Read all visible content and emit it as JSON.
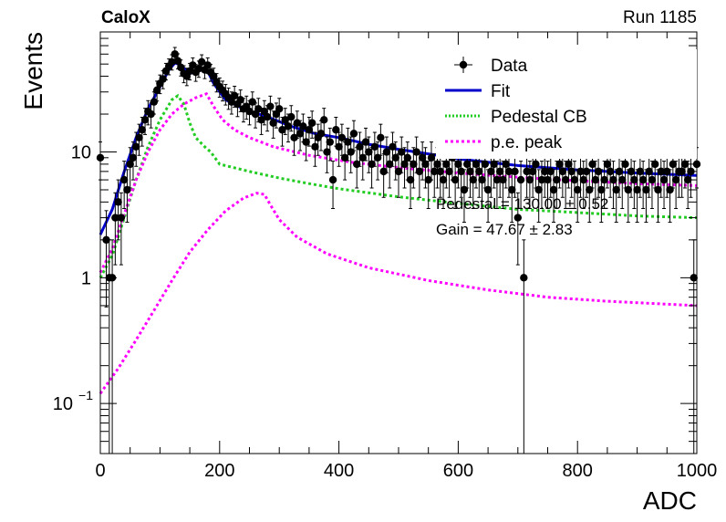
{
  "header": {
    "left_label": "CaloX",
    "right_label": "Run 1185"
  },
  "chart_data": {
    "type": "scatter",
    "xlabel": "ADC",
    "ylabel": "Events",
    "xlim": [
      0,
      1000
    ],
    "ylim": [
      0.04,
      90
    ],
    "yscale": "log",
    "grid": false,
    "legend_position": "top-right",
    "x_ticks": [
      "0",
      "200",
      "400",
      "600",
      "800",
      "1000"
    ],
    "y_ticks": [
      {
        "base": "10",
        "exp": "−1",
        "value": 0.1
      },
      {
        "base": "1",
        "exp": "",
        "value": 1
      },
      {
        "base": "10",
        "exp": "",
        "value": 10
      }
    ],
    "legend": [
      {
        "label": "Data",
        "style": "marker"
      },
      {
        "label": "Fit",
        "style": "line"
      },
      {
        "label": "Pedestal CB",
        "style": "dotted"
      },
      {
        "label": "p.e. peak",
        "style": "dashed"
      }
    ],
    "annotations": [
      "Pedestal = 130.00 ± 0.52",
      "Gain = 47.67 ± 2.83"
    ],
    "colors": {
      "data": "#000000",
      "fit": "#0000cc",
      "pedestal": "#22cc22",
      "pe": "#ff00ff"
    },
    "series": [
      {
        "name": "Data",
        "points": [
          [
            0,
            9
          ],
          [
            10,
            2
          ],
          [
            15,
            1
          ],
          [
            20,
            1
          ],
          [
            25,
            3
          ],
          [
            30,
            4
          ],
          [
            35,
            3
          ],
          [
            40,
            6
          ],
          [
            45,
            5
          ],
          [
            50,
            8
          ],
          [
            55,
            9
          ],
          [
            60,
            11
          ],
          [
            65,
            13
          ],
          [
            70,
            15
          ],
          [
            75,
            18
          ],
          [
            80,
            21
          ],
          [
            85,
            20
          ],
          [
            90,
            25
          ],
          [
            95,
            31
          ],
          [
            100,
            35
          ],
          [
            105,
            38
          ],
          [
            110,
            44
          ],
          [
            115,
            48
          ],
          [
            120,
            52
          ],
          [
            125,
            60
          ],
          [
            130,
            53
          ],
          [
            135,
            47
          ],
          [
            140,
            42
          ],
          [
            145,
            40
          ],
          [
            150,
            44
          ],
          [
            155,
            49
          ],
          [
            160,
            43
          ],
          [
            165,
            46
          ],
          [
            170,
            52
          ],
          [
            175,
            45
          ],
          [
            180,
            49
          ],
          [
            185,
            43
          ],
          [
            190,
            40
          ],
          [
            195,
            36
          ],
          [
            200,
            33
          ],
          [
            205,
            31
          ],
          [
            210,
            29
          ],
          [
            215,
            27
          ],
          [
            220,
            25
          ],
          [
            225,
            28
          ],
          [
            230,
            24
          ],
          [
            235,
            26
          ],
          [
            240,
            22
          ],
          [
            245,
            23
          ],
          [
            250,
            21
          ],
          [
            255,
            25
          ],
          [
            260,
            20
          ],
          [
            265,
            22
          ],
          [
            270,
            18
          ],
          [
            275,
            21
          ],
          [
            280,
            19
          ],
          [
            285,
            23
          ],
          [
            290,
            17
          ],
          [
            295,
            20
          ],
          [
            300,
            22
          ],
          [
            305,
            15
          ],
          [
            310,
            18
          ],
          [
            315,
            16
          ],
          [
            320,
            19
          ],
          [
            325,
            13
          ],
          [
            330,
            17
          ],
          [
            335,
            14
          ],
          [
            340,
            16
          ],
          [
            345,
            12
          ],
          [
            350,
            15
          ],
          [
            355,
            17
          ],
          [
            360,
            11
          ],
          [
            365,
            13
          ],
          [
            370,
            14
          ],
          [
            375,
            18
          ],
          [
            380,
            10
          ],
          [
            385,
            12
          ],
          [
            390,
            6
          ],
          [
            395,
            15
          ],
          [
            400,
            11
          ],
          [
            405,
            13
          ],
          [
            410,
            9
          ],
          [
            415,
            12
          ],
          [
            420,
            10
          ],
          [
            425,
            14
          ],
          [
            430,
            8
          ],
          [
            435,
            11
          ],
          [
            440,
            9
          ],
          [
            445,
            12
          ],
          [
            450,
            10
          ],
          [
            455,
            8
          ],
          [
            460,
            11
          ],
          [
            465,
            9
          ],
          [
            470,
            13
          ],
          [
            475,
            7
          ],
          [
            480,
            10
          ],
          [
            485,
            8
          ],
          [
            490,
            11
          ],
          [
            495,
            9
          ],
          [
            500,
            7
          ],
          [
            505,
            10
          ],
          [
            510,
            8
          ],
          [
            515,
            9
          ],
          [
            520,
            6
          ],
          [
            525,
            8
          ],
          [
            530,
            10
          ],
          [
            535,
            7
          ],
          [
            540,
            9
          ],
          [
            545,
            8
          ],
          [
            550,
            6
          ],
          [
            555,
            9
          ],
          [
            560,
            7
          ],
          [
            565,
            8
          ],
          [
            570,
            7
          ],
          [
            575,
            6
          ],
          [
            580,
            8
          ],
          [
            585,
            7
          ],
          [
            590,
            9
          ],
          [
            595,
            6
          ],
          [
            600,
            8
          ],
          [
            605,
            7
          ],
          [
            610,
            5
          ],
          [
            615,
            8
          ],
          [
            620,
            7
          ],
          [
            625,
            6
          ],
          [
            630,
            8
          ],
          [
            635,
            7
          ],
          [
            640,
            6
          ],
          [
            645,
            8
          ],
          [
            650,
            5
          ],
          [
            655,
            7
          ],
          [
            660,
            8
          ],
          [
            665,
            6
          ],
          [
            670,
            7
          ],
          [
            675,
            6
          ],
          [
            680,
            8
          ],
          [
            685,
            7
          ],
          [
            690,
            5
          ],
          [
            695,
            7
          ],
          [
            700,
            3
          ],
          [
            705,
            6
          ],
          [
            710,
            1
          ],
          [
            715,
            7
          ],
          [
            720,
            6
          ],
          [
            725,
            7
          ],
          [
            730,
            8
          ],
          [
            735,
            5
          ],
          [
            740,
            6
          ],
          [
            745,
            7
          ],
          [
            750,
            6
          ],
          [
            755,
            7
          ],
          [
            760,
            5
          ],
          [
            765,
            6
          ],
          [
            770,
            8
          ],
          [
            775,
            7
          ],
          [
            780,
            6
          ],
          [
            785,
            8
          ],
          [
            790,
            7
          ],
          [
            795,
            6
          ],
          [
            800,
            5
          ],
          [
            805,
            7
          ],
          [
            810,
            6
          ],
          [
            815,
            7
          ],
          [
            820,
            5
          ],
          [
            825,
            8
          ],
          [
            830,
            6
          ],
          [
            835,
            7
          ],
          [
            840,
            5
          ],
          [
            845,
            6
          ],
          [
            850,
            8
          ],
          [
            855,
            7
          ],
          [
            860,
            6
          ],
          [
            865,
            5
          ],
          [
            870,
            7
          ],
          [
            875,
            6
          ],
          [
            880,
            8
          ],
          [
            885,
            5
          ],
          [
            890,
            7
          ],
          [
            895,
            6
          ],
          [
            900,
            5
          ],
          [
            905,
            7
          ],
          [
            910,
            6
          ],
          [
            915,
            5
          ],
          [
            920,
            7
          ],
          [
            925,
            6
          ],
          [
            930,
            8
          ],
          [
            935,
            5
          ],
          [
            940,
            7
          ],
          [
            945,
            6
          ],
          [
            950,
            7
          ],
          [
            955,
            5
          ],
          [
            960,
            8
          ],
          [
            965,
            6
          ],
          [
            970,
            7
          ],
          [
            975,
            7
          ],
          [
            980,
            8
          ],
          [
            985,
            6
          ],
          [
            990,
            7
          ],
          [
            995,
            1
          ],
          [
            1000,
            8
          ]
        ]
      },
      {
        "name": "Fit",
        "points": [
          [
            0,
            2.2
          ],
          [
            20,
            3.5
          ],
          [
            40,
            7
          ],
          [
            60,
            13
          ],
          [
            80,
            22
          ],
          [
            100,
            33
          ],
          [
            115,
            45
          ],
          [
            125,
            51
          ],
          [
            135,
            49
          ],
          [
            150,
            42
          ],
          [
            165,
            44
          ],
          [
            178,
            46
          ],
          [
            190,
            35
          ],
          [
            210,
            26
          ],
          [
            240,
            22
          ],
          [
            280,
            19
          ],
          [
            320,
            16
          ],
          [
            360,
            14
          ],
          [
            400,
            13
          ],
          [
            450,
            11.5
          ],
          [
            500,
            10.5
          ],
          [
            560,
            9.5
          ],
          [
            600,
            8.8
          ],
          [
            700,
            7.8
          ],
          [
            800,
            7.2
          ],
          [
            900,
            6.8
          ],
          [
            1000,
            6.5
          ]
        ]
      },
      {
        "name": "Pedestal CB",
        "points": [
          [
            0,
            1.0
          ],
          [
            20,
            1.5
          ],
          [
            40,
            3
          ],
          [
            60,
            6
          ],
          [
            80,
            11
          ],
          [
            100,
            18
          ],
          [
            120,
            26
          ],
          [
            130,
            28
          ],
          [
            140,
            24
          ],
          [
            150,
            17
          ],
          [
            160,
            13
          ],
          [
            175,
            11
          ],
          [
            185,
            10
          ],
          [
            200,
            8
          ],
          [
            250,
            7
          ],
          [
            300,
            6.2
          ],
          [
            350,
            5.6
          ],
          [
            400,
            5.1
          ],
          [
            500,
            4.4
          ],
          [
            600,
            3.9
          ],
          [
            700,
            3.5
          ],
          [
            800,
            3.3
          ],
          [
            900,
            3.1
          ],
          [
            1000,
            3.0
          ]
        ]
      },
      {
        "name": "p.e. peak",
        "points": [
          [
            0,
            0.12
          ],
          [
            30,
            0.19
          ],
          [
            60,
            0.32
          ],
          [
            90,
            0.55
          ],
          [
            120,
            0.95
          ],
          [
            150,
            1.6
          ],
          [
            180,
            2.4
          ],
          [
            210,
            3.4
          ],
          [
            240,
            4.3
          ],
          [
            262,
            4.7
          ],
          [
            275,
            4.6
          ],
          [
            285,
            3.8
          ],
          [
            300,
            2.9
          ],
          [
            330,
            2.1
          ],
          [
            380,
            1.55
          ],
          [
            450,
            1.2
          ],
          [
            550,
            0.95
          ],
          [
            650,
            0.8
          ],
          [
            750,
            0.7
          ],
          [
            850,
            0.65
          ],
          [
            1000,
            0.6
          ]
        ]
      },
      {
        "name": "p.e. peak",
        "points": [
          [
            0,
            1.1
          ],
          [
            20,
            1.7
          ],
          [
            40,
            3.2
          ],
          [
            60,
            6
          ],
          [
            80,
            10
          ],
          [
            100,
            15
          ],
          [
            120,
            20
          ],
          [
            140,
            24
          ],
          [
            160,
            27
          ],
          [
            178,
            29
          ],
          [
            190,
            23
          ],
          [
            205,
            18
          ],
          [
            225,
            15
          ],
          [
            250,
            13
          ],
          [
            290,
            11
          ],
          [
            350,
            9.4
          ],
          [
            420,
            8.3
          ],
          [
            500,
            7.5
          ],
          [
            600,
            6.8
          ],
          [
            700,
            6.3
          ],
          [
            800,
            5.9
          ],
          [
            900,
            5.6
          ],
          [
            1000,
            5.4
          ]
        ]
      }
    ]
  }
}
